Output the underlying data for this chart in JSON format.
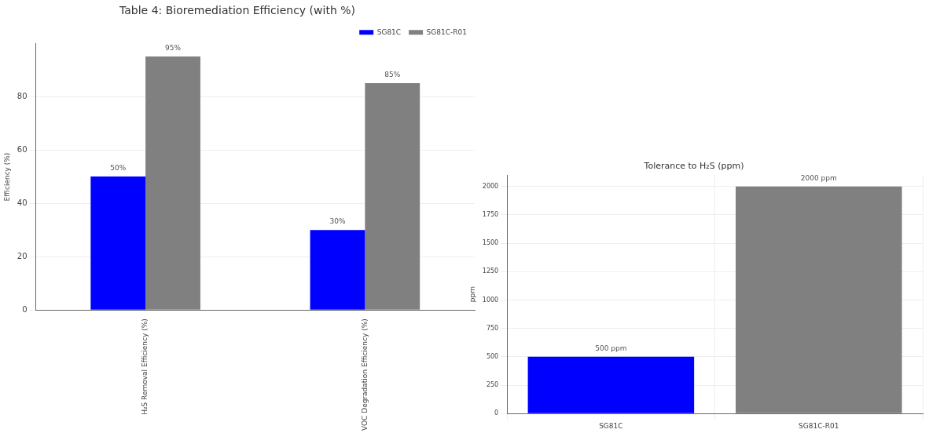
{
  "chart_data": [
    {
      "type": "bar",
      "title": "Table 4: Bioremediation Efficiency (with %)",
      "ylabel": "Efficiency (%)",
      "categories": [
        "H₂S Removal Efficiency (%)",
        "VOC Degradation Efficiency (%)"
      ],
      "series": [
        {
          "name": "SG81C",
          "color": "#0000ff",
          "values": [
            50,
            30
          ],
          "value_labels": [
            "50%",
            "30%"
          ]
        },
        {
          "name": "SG81C-R01",
          "color": "#808080",
          "values": [
            95,
            85
          ],
          "value_labels": [
            "95%",
            "85%"
          ]
        }
      ],
      "ylim": [
        0,
        99.75
      ],
      "yticks": [
        0,
        20,
        40,
        60,
        80
      ],
      "grid": "y",
      "legend": "top right"
    },
    {
      "type": "bar",
      "title": "Tolerance to H₂S (ppm)",
      "ylabel": "ppm",
      "categories": [
        "SG81C",
        "SG81C-R01"
      ],
      "values": [
        500,
        2000
      ],
      "colors": [
        "#0000ff",
        "#808080"
      ],
      "value_labels": [
        "500 ppm",
        "2000 ppm"
      ],
      "ylim": [
        0,
        2100
      ],
      "yticks": [
        0,
        250,
        500,
        750,
        1000,
        1250,
        1500,
        1750,
        2000
      ],
      "grid": true,
      "legend": false
    }
  ]
}
